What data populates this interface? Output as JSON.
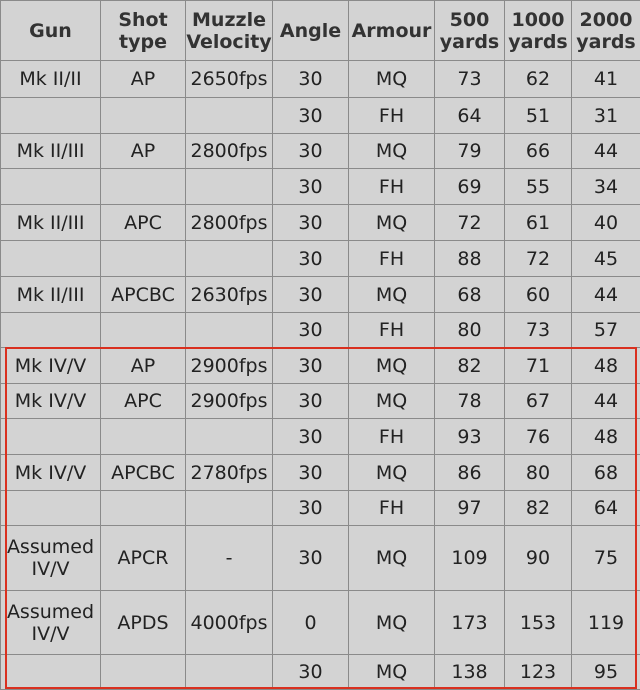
{
  "table": {
    "header": [
      "Gun",
      "Shot type",
      "Muzzle Velocity",
      "Angle",
      "Armour",
      "500 yards",
      "1000 yards",
      "2000 yards"
    ],
    "rows": [
      [
        "Mk II/II",
        "AP",
        "2650fps",
        30,
        "MQ",
        73,
        62,
        41
      ],
      [
        null,
        null,
        null,
        30,
        "FH",
        64,
        51,
        31
      ],
      [
        "Mk II/III",
        "AP",
        "2800fps",
        30,
        "MQ",
        79,
        66,
        44
      ],
      [
        null,
        null,
        null,
        30,
        "FH",
        69,
        55,
        34
      ],
      [
        "Mk II/III",
        "APC",
        "2800fps",
        30,
        "MQ",
        72,
        61,
        40
      ],
      [
        null,
        null,
        null,
        30,
        "FH",
        88,
        72,
        45
      ],
      [
        "Mk II/III",
        "APCBC",
        "2630fps",
        30,
        "MQ",
        68,
        60,
        44
      ],
      [
        null,
        null,
        null,
        30,
        "FH",
        80,
        73,
        57
      ],
      [
        "Mk IV/V",
        "AP",
        "2900fps",
        30,
        "MQ",
        82,
        71,
        48
      ],
      [
        "Mk IV/V",
        "APC",
        "2900fps",
        30,
        "MQ",
        78,
        67,
        44
      ],
      [
        null,
        null,
        null,
        30,
        "FH",
        93,
        76,
        48
      ],
      [
        "Mk IV/V",
        "APCBC",
        "2780fps",
        30,
        "MQ",
        86,
        80,
        68
      ],
      [
        null,
        null,
        null,
        30,
        "FH",
        97,
        82,
        64
      ],
      [
        "Assumed IV/V",
        "APCR",
        "-",
        30,
        "MQ",
        109,
        90,
        75
      ],
      [
        "Assumed IV/V",
        "APDS",
        "4000fps",
        0,
        "MQ",
        173,
        153,
        119
      ],
      [
        null,
        null,
        null,
        30,
        "MQ",
        138,
        123,
        95
      ]
    ]
  }
}
